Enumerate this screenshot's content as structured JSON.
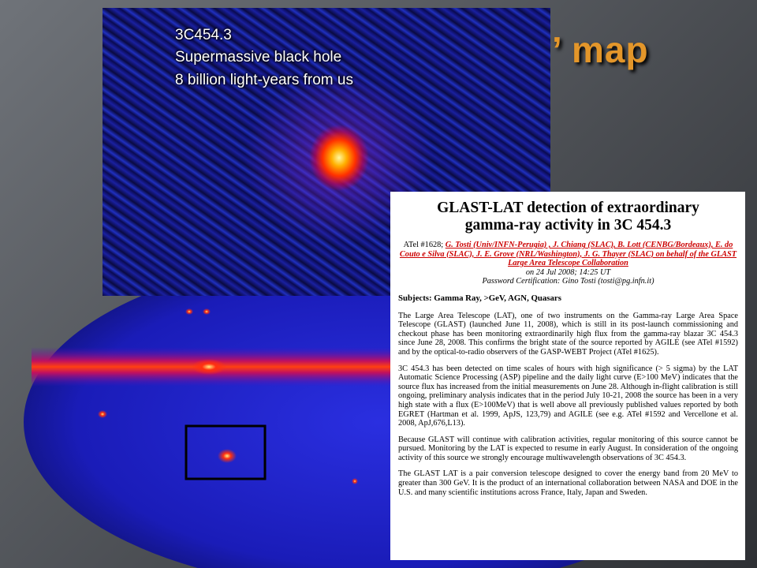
{
  "slide": {
    "title": "’ map"
  },
  "inset": {
    "lines": [
      "3C454.3",
      "Supermassive black hole",
      "8 billion light-years from us"
    ]
  },
  "atel": {
    "title_lines": [
      "GLAST-LAT detection of extraordinary",
      "gamma-ray activity in 3C 454.3"
    ],
    "atel_number": "ATel #1628;",
    "authors": "G. Tosti (Univ/INFN-Perugia) , J. Chiang (SLAC), B. Lott (CENBG/Bordeaux), E. do Couto e Silva (SLAC), J. E. Grove (NRL/Washington), J. G. Thayer (SLAC) on behalf of the GLAST Large Area Telescope Collaboration",
    "date": "on 24 Jul 2008; 14:25 UT",
    "password": "Password Certification: Gino Tosti (tosti@pg.infn.it)",
    "subjects": "Subjects: Gamma Ray, >GeV, AGN, Quasars",
    "paragraphs": [
      "The Large Area Telescope (LAT), one of two instruments on the Gamma-ray Large Area Space Telescope (GLAST) (launched June 11, 2008), which is still in its post-launch commissioning and checkout phase has been monitoring extraordinarily high flux from the gamma-ray blazar 3C 454.3 since June 28, 2008. This confirms the bright state of the source reported by AGILE (see ATel #1592) and by the optical-to-radio observers of the GASP-WEBT Project (ATel #1625).",
      "3C 454.3 has been detected on time scales of hours with high significance (> 5 sigma) by the LAT Automatic Science Processing (ASP) pipeline and the daily light curve (E>100 MeV) indicates that the source flux has increased from the initial measurements on June 28. Although in-flight calibration is still ongoing, preliminary analysis indicates that in the period July 10-21, 2008 the source has been in a very high state with a flux (E>100MeV) that is well above all previously published values reported by both EGRET (Hartman et al. 1999, ApJS, 123,79) and AGILE (see e.g. ATel #1592 and Vercellone et al. 2008, ApJ,676,L13).",
      "Because GLAST will continue with calibration activities, regular monitoring of this source cannot be pursued. Monitoring by the LAT is expected to resume in early August. In consideration of the ongoing activity of this source we strongly encourage multiwavelength observations of 3C 454.3.",
      "The GLAST LAT is a pair conversion telescope designed to cover the energy band from 20 MeV to greater than 300 GeV. It is the product of an international collaboration between NASA and DOE in the U.S. and many scientific institutions across France, Italy, Japan and Sweden."
    ]
  }
}
